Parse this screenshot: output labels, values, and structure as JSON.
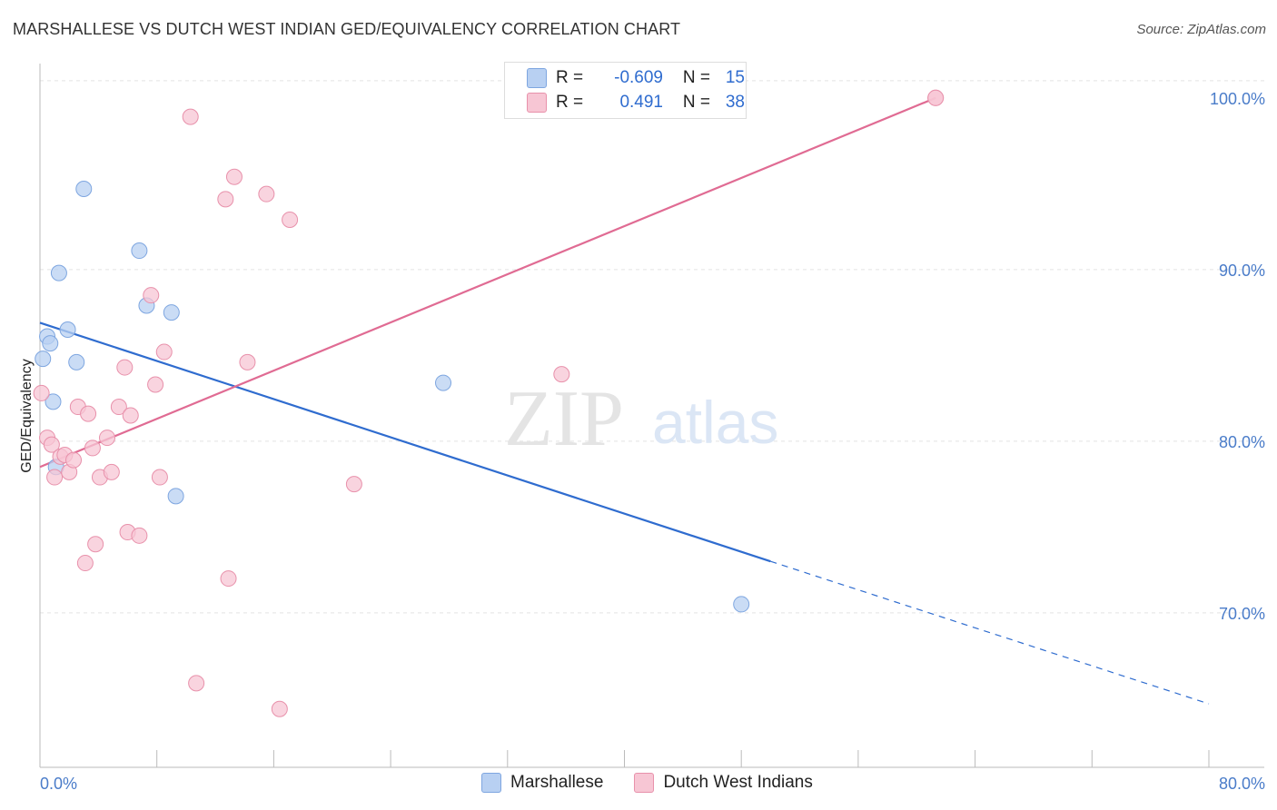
{
  "header": {
    "title": "MARSHALLESE VS DUTCH WEST INDIAN GED/EQUIVALENCY CORRELATION CHART",
    "source": "Source: ZipAtlas.com"
  },
  "watermark": {
    "zip": "ZIP",
    "atlas": "atlas"
  },
  "legend": {
    "rows": [
      {
        "r_label": "R =",
        "r_value": "-0.609",
        "n_label": "N =",
        "n_value": "15"
      },
      {
        "r_label": "R =",
        "r_value": "0.491",
        "n_label": "N =",
        "n_value": "38"
      }
    ]
  },
  "bottom_legend": [
    "Marshallese",
    "Dutch West Indians"
  ],
  "colors": {
    "blue_fill": "#b8d0f2",
    "blue_stroke": "#7ea6e0",
    "blue_line": "#2f6ccf",
    "pink_fill": "#f7c6d4",
    "pink_stroke": "#e891ab",
    "pink_line": "#e06b93",
    "tick_text": "#4a7cc9",
    "grid": "#e3e3e3"
  },
  "chart_data": {
    "type": "scatter",
    "title": "MARSHALLESE VS DUTCH WEST INDIAN GED/EQUIVALENCY CORRELATION CHART",
    "xlabel": "",
    "ylabel": "GED/Equivalency",
    "xlim": [
      0,
      80
    ],
    "ylim": [
      61,
      102
    ],
    "x_tick_labels": [
      "0.0%",
      "80.0%"
    ],
    "y_ticks": [
      70,
      80,
      90,
      100
    ],
    "y_tick_labels": [
      "70.0%",
      "80.0%",
      "90.0%",
      "100.0%"
    ],
    "grid": true,
    "legend_position": "top-center",
    "series": [
      {
        "name": "Marshallese",
        "r": -0.609,
        "n": 15,
        "points": [
          [
            0.2,
            84.8
          ],
          [
            0.5,
            86.1
          ],
          [
            0.7,
            85.7
          ],
          [
            0.9,
            82.3
          ],
          [
            1.1,
            78.5
          ],
          [
            1.3,
            89.8
          ],
          [
            1.9,
            86.5
          ],
          [
            2.5,
            84.6
          ],
          [
            3.0,
            94.7
          ],
          [
            6.8,
            91.1
          ],
          [
            7.3,
            87.9
          ],
          [
            9.0,
            87.5
          ],
          [
            9.3,
            76.8
          ],
          [
            27.6,
            83.4
          ],
          [
            48.0,
            70.5
          ]
        ],
        "trend": {
          "x0": 0,
          "y0": 86.9,
          "x1": 50,
          "y1": 73.0,
          "dash_to_x": 80,
          "dash_to_y": 64.7
        }
      },
      {
        "name": "Dutch West Indians",
        "r": 0.491,
        "n": 38,
        "points": [
          [
            0.1,
            82.8
          ],
          [
            0.5,
            80.2
          ],
          [
            0.8,
            79.8
          ],
          [
            1.0,
            77.9
          ],
          [
            1.4,
            79.1
          ],
          [
            1.7,
            79.2
          ],
          [
            2.0,
            78.2
          ],
          [
            2.3,
            78.9
          ],
          [
            2.6,
            82.0
          ],
          [
            3.1,
            72.9
          ],
          [
            3.3,
            81.6
          ],
          [
            3.6,
            79.6
          ],
          [
            3.8,
            74.0
          ],
          [
            4.1,
            77.9
          ],
          [
            4.6,
            80.2
          ],
          [
            4.9,
            78.2
          ],
          [
            5.4,
            82.0
          ],
          [
            5.8,
            84.3
          ],
          [
            6.0,
            74.7
          ],
          [
            6.2,
            81.5
          ],
          [
            6.8,
            74.5
          ],
          [
            7.6,
            88.5
          ],
          [
            7.9,
            83.3
          ],
          [
            8.2,
            77.9
          ],
          [
            8.5,
            85.2
          ],
          [
            10.3,
            98.9
          ],
          [
            10.7,
            65.9
          ],
          [
            12.7,
            94.1
          ],
          [
            12.9,
            72.0
          ],
          [
            13.3,
            95.4
          ],
          [
            14.2,
            84.6
          ],
          [
            15.5,
            94.4
          ],
          [
            16.4,
            64.4
          ],
          [
            17.1,
            92.9
          ],
          [
            21.5,
            77.5
          ],
          [
            35.7,
            83.9
          ],
          [
            61.3,
            100.0
          ],
          [
            61.3,
            100.0
          ]
        ],
        "trend": {
          "x0": 0,
          "y0": 78.5,
          "x1": 61.3,
          "y1": 100.0
        }
      }
    ]
  }
}
